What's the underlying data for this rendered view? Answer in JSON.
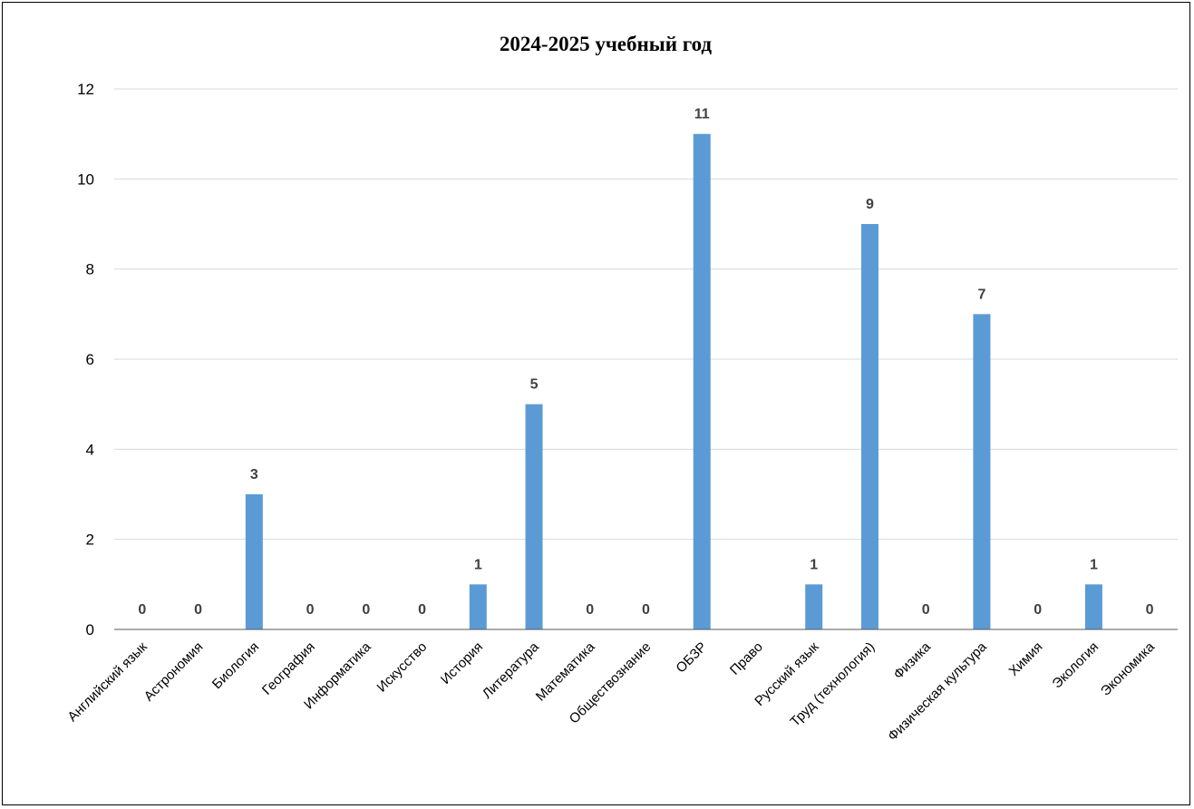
{
  "chart_data": {
    "type": "bar",
    "title": "2024-2025 учебный год",
    "categories": [
      "Английский язык",
      "Астрономия",
      "Биология",
      "География",
      "Информатика",
      "Искусство",
      "История",
      "Литература",
      "Математика",
      "Обществознание",
      "ОБЗР",
      "Право",
      "Русский язык",
      "Труд (технология)",
      "Физика",
      "Физическая культура",
      "Химия",
      "Экология",
      "Экономика"
    ],
    "values": [
      0,
      0,
      3,
      0,
      0,
      0,
      1,
      5,
      0,
      0,
      11,
      null,
      1,
      9,
      0,
      7,
      0,
      1,
      0
    ],
    "ylim": [
      0,
      12
    ],
    "yticks": [
      0,
      2,
      4,
      6,
      8,
      10,
      12
    ],
    "grid": true,
    "legend": "none",
    "bar_color": "#5B9BD5",
    "grid_color": "#D9D9D9",
    "axis_color": "#595959"
  }
}
